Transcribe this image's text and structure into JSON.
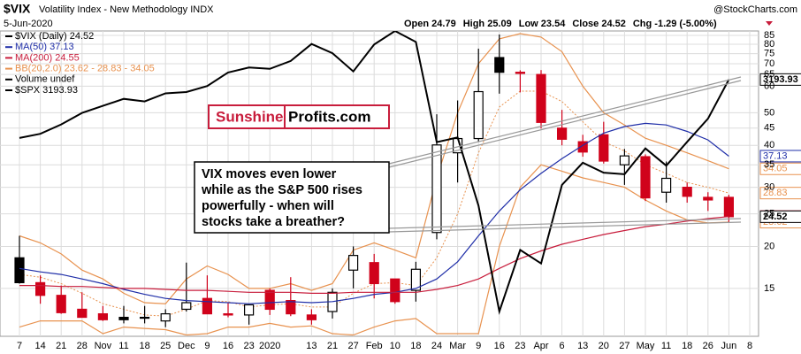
{
  "chart_data": {
    "type": "candlestick",
    "symbol": "$VIX",
    "title": "Volatility Index - New Methodology INDX",
    "date": "5-Jun-2020",
    "source": "@StockCharts.com",
    "quote": [
      "Open 24.79",
      "High 25.09",
      "Low 23.54",
      "Close 24.52",
      "Chg -1.29 (-5.00%)"
    ],
    "logo": [
      "Sunshine",
      "Profits.com"
    ],
    "annotation": [
      "VIX moves even lower",
      "while as the S&P 500 rises",
      "powerfully - when will",
      "stocks take a breather?"
    ],
    "categories": [
      "7",
      "14",
      "21",
      "28",
      "Nov",
      "11",
      "18",
      "25",
      "Dec",
      "9",
      "16",
      "23",
      "2020",
      null,
      "13",
      "21",
      "27",
      "Feb",
      "10",
      "18",
      "24",
      "Mar",
      "9",
      "16",
      "23",
      "Apr",
      "6",
      "13",
      "20",
      "27",
      "May",
      "11",
      "18",
      "26",
      "Jun",
      "8"
    ],
    "yscale": "log",
    "ylim": [
      10.8,
      87.6
    ],
    "yticks": [
      15,
      20,
      25,
      30,
      35,
      40,
      45,
      50,
      60,
      65,
      70,
      75,
      80,
      85
    ],
    "y2lim": [
      2210,
      3380
    ],
    "grid": true,
    "series": [
      {
        "name": "$VIX (Daily) 24.52",
        "color": "#000000",
        "down_color": "#d0021b",
        "open": [
          18.5,
          15.6,
          14.3,
          13.0,
          12.6,
          12.3,
          12.3,
          12.0,
          13.0,
          14.0,
          12.6,
          12.5,
          14.8,
          13.8,
          12.5,
          12.8,
          17.0,
          17.9,
          16.0,
          14.8,
          22.0,
          38.0,
          41.9,
          73.0,
          66.0,
          65.0,
          45.0,
          41.0,
          43.0,
          35.0,
          37.0,
          29.0,
          30.0,
          28.0,
          28.0,
          null
        ],
        "high": [
          21.5,
          16.4,
          15.3,
          14.6,
          13.3,
          13.3,
          13.3,
          13.0,
          17.9,
          16.4,
          13.6,
          13.0,
          15.0,
          16.2,
          13.0,
          15.0,
          20.0,
          19.0,
          16.0,
          18.0,
          49.5,
          54.4,
          77.6,
          85.5,
          66.9,
          67.0,
          51.0,
          43.0,
          47.0,
          39.0,
          37.6,
          35.8,
          31.0,
          29.0,
          28.5,
          null
        ],
        "low": [
          15.5,
          13.5,
          12.6,
          12.3,
          12.0,
          11.8,
          11.8,
          11.5,
          12.8,
          12.6,
          12.3,
          11.7,
          12.5,
          12.4,
          11.7,
          12.2,
          15.0,
          14.0,
          13.5,
          13.7,
          21.0,
          31.0,
          41.0,
          57.0,
          57.5,
          44.9,
          40.0,
          37.0,
          35.3,
          30.5,
          27.3,
          27.0,
          27.0,
          25.5,
          23.5,
          null
        ],
        "close": [
          15.6,
          14.3,
          12.7,
          12.3,
          12.1,
          12.1,
          12.3,
          12.6,
          13.6,
          12.6,
          12.5,
          13.4,
          13.0,
          12.6,
          12.1,
          14.6,
          18.8,
          15.5,
          13.7,
          17.1,
          40.1,
          41.9,
          57.8,
          66.0,
          65.5,
          46.8,
          41.7,
          38.2,
          35.9,
          37.2,
          27.9,
          31.9,
          28.2,
          27.5,
          24.52,
          null
        ]
      },
      {
        "name": "MA(50) 37.13",
        "color": "#1f2ea8",
        "values": [
          17.2,
          16.8,
          16.5,
          16.0,
          15.5,
          14.9,
          14.4,
          14.0,
          13.8,
          13.7,
          13.6,
          13.5,
          13.6,
          13.7,
          13.6,
          13.7,
          14.0,
          14.4,
          14.6,
          15.0,
          16.0,
          18.0,
          21.5,
          25.5,
          29.5,
          33.0,
          36.5,
          40.0,
          43.5,
          45.5,
          46.5,
          46.0,
          44.0,
          41.5,
          37.13,
          null
        ]
      },
      {
        "name": "MA(200) 24.55",
        "color": "#c81d3c",
        "values": [
          15.3,
          15.3,
          15.2,
          15.2,
          15.1,
          15.0,
          15.0,
          14.9,
          14.8,
          14.8,
          14.7,
          14.6,
          14.6,
          14.6,
          14.5,
          14.5,
          14.6,
          14.6,
          14.6,
          14.6,
          14.9,
          15.3,
          16.0,
          17.2,
          18.4,
          19.4,
          20.3,
          21.0,
          21.7,
          22.3,
          22.9,
          23.3,
          23.8,
          24.2,
          24.55,
          null
        ]
      },
      {
        "name": "BB(20,2.0) 23.62 - 28.83 - 34.05",
        "color": "#e8924f",
        "upper": [
          21.5,
          20.5,
          19.0,
          17.0,
          16.0,
          14.5,
          13.6,
          13.5,
          16.0,
          17.5,
          16.5,
          15.0,
          15.0,
          15.5,
          14.8,
          15.5,
          19.5,
          20.5,
          19.5,
          18.5,
          32.0,
          50.0,
          70.0,
          83.0,
          86.0,
          84.0,
          76.0,
          60.0,
          50.0,
          46.0,
          42.0,
          40.0,
          38.0,
          36.0,
          34.05,
          null
        ],
        "middle": [
          16.5,
          16.2,
          15.5,
          14.5,
          13.5,
          13.0,
          12.5,
          12.4,
          13.0,
          13.8,
          13.7,
          13.2,
          13.4,
          13.5,
          13.2,
          13.2,
          14.5,
          15.5,
          15.6,
          15.3,
          18.5,
          25.0,
          38.0,
          52.0,
          58.0,
          58.0,
          54.0,
          47.0,
          41.0,
          38.5,
          35.0,
          33.0,
          31.0,
          30.0,
          28.83,
          null
        ],
        "lower": [
          11.5,
          12.0,
          12.0,
          12.0,
          11.0,
          11.5,
          11.4,
          11.3,
          10.9,
          11.0,
          11.5,
          11.5,
          11.8,
          11.5,
          11.6,
          11.0,
          10.9,
          11.5,
          12.0,
          12.2,
          11.0,
          11.0,
          11.0,
          20.0,
          30.0,
          35.0,
          33.5,
          32.0,
          31.0,
          30.0,
          27.5,
          25.5,
          24.0,
          23.5,
          23.62,
          null
        ]
      },
      {
        "name": "Volume undef",
        "color": "#000000"
      },
      {
        "name": "$SPX 3193.93",
        "color": "#000000",
        "axis": "y2",
        "values": [
          2970,
          2986,
          3022,
          3066,
          3093,
          3120,
          3110,
          3141,
          3146,
          3169,
          3221,
          3240,
          3235,
          3265,
          3330,
          3295,
          3225,
          3328,
          3380,
          3338,
          2954,
          2972,
          2711,
          2305,
          2541,
          2489,
          2790,
          2875,
          2837,
          2831,
          2930,
          2864,
          2955,
          3044,
          3193.93,
          null
        ]
      }
    ]
  }
}
